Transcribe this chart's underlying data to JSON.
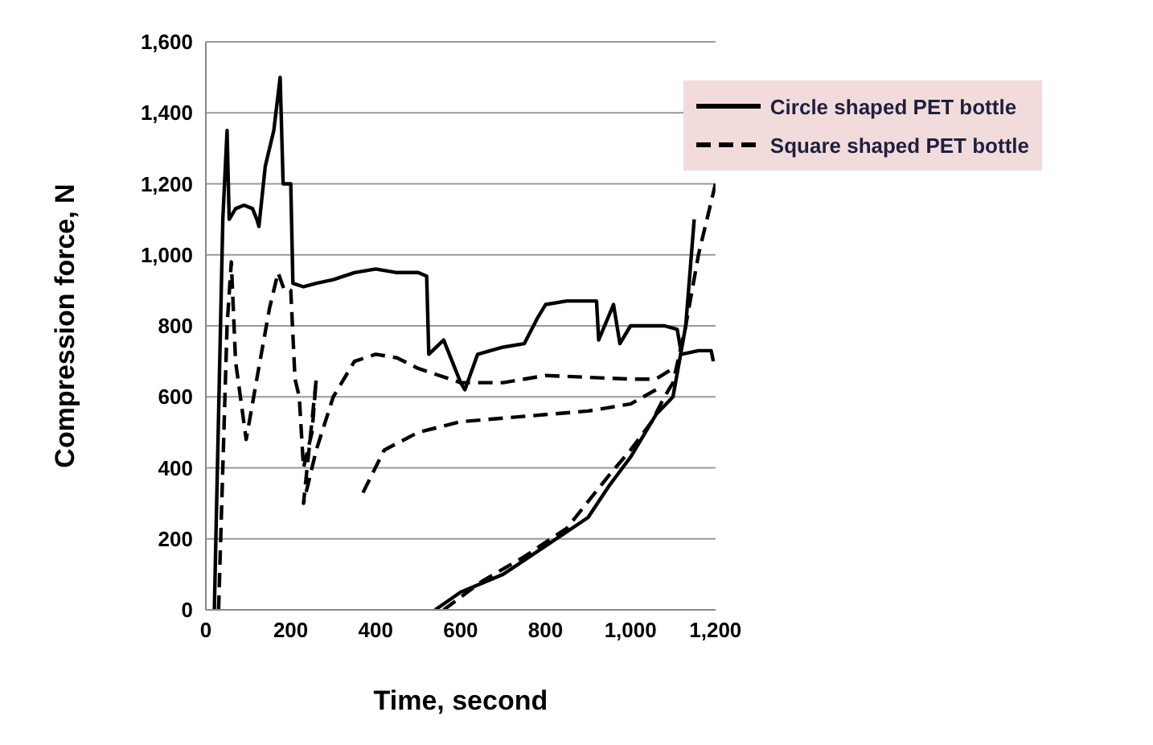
{
  "chart_data": {
    "type": "line",
    "xlabel": "Time, second",
    "ylabel": "Compression force, N",
    "xlim": [
      0,
      1200
    ],
    "xticks": [
      0,
      {
        "value": 200,
        "label": "200"
      },
      {
        "value": 400,
        "label": "400"
      },
      {
        "value": 600,
        "label": "600"
      },
      {
        "value": 800,
        "label": "800"
      },
      {
        "value": 1000,
        "label": "1,000"
      },
      {
        "value": 1200,
        "label": "1,200"
      }
    ],
    "ylim": [
      0,
      1600
    ],
    "yticks": [
      0,
      200,
      400,
      600,
      800,
      {
        "value": 1000,
        "label": "1,000"
      },
      {
        "value": 1200,
        "label": "1,200"
      },
      {
        "value": 1400,
        "label": "1,400"
      },
      {
        "value": 1600,
        "label": "1,600"
      }
    ],
    "grid": "y",
    "legend": "top right",
    "marker": "none",
    "series": [
      {
        "name": "Circle shaped PET bottle",
        "color": "#000000",
        "line_style": "solid",
        "x": [
          20,
          40,
          50,
          55,
          70,
          90,
          110,
          120,
          125,
          140,
          160,
          175,
          182,
          190,
          200,
          205,
          230,
          260,
          300,
          350,
          400,
          450,
          500,
          520,
          525,
          560,
          580,
          600,
          610,
          640,
          700,
          750,
          780,
          800,
          850,
          920,
          925,
          960,
          975,
          1000,
          1080,
          1110,
          1120,
          1160,
          1190,
          1195,
          null,
          540,
          600,
          700,
          800,
          900,
          950,
          1000,
          1060,
          1100,
          1130,
          1150
        ],
        "values": [
          0,
          1100,
          1350,
          1100,
          1130,
          1140,
          1130,
          1100,
          1080,
          1250,
          1350,
          1500,
          1200,
          1200,
          1200,
          920,
          910,
          920,
          930,
          950,
          960,
          950,
          950,
          940,
          720,
          760,
          700,
          640,
          620,
          720,
          740,
          750,
          820,
          860,
          870,
          870,
          760,
          860,
          750,
          800,
          800,
          790,
          720,
          730,
          730,
          700,
          null,
          0,
          50,
          100,
          180,
          260,
          350,
          430,
          550,
          600,
          800,
          1100
        ]
      },
      {
        "name": "Square shaped PET bottle",
        "color": "#000000",
        "line_style": "dashed",
        "x": [
          30,
          50,
          60,
          70,
          95,
          120,
          150,
          170,
          185,
          200,
          210,
          220,
          230,
          250,
          260,
          230,
          260,
          300,
          350,
          400,
          450,
          500,
          600,
          700,
          800,
          900,
          1000,
          1060,
          1100,
          null,
          370,
          420,
          500,
          600,
          700,
          800,
          900,
          1000,
          1060,
          null,
          560,
          650,
          750,
          850,
          950,
          1000,
          1050,
          1080,
          1100,
          1130,
          1160,
          1200
        ],
        "values": [
          0,
          800,
          980,
          700,
          480,
          650,
          850,
          950,
          900,
          900,
          650,
          600,
          400,
          500,
          650,
          300,
          450,
          600,
          700,
          720,
          710,
          680,
          640,
          640,
          660,
          655,
          650,
          650,
          680,
          null,
          330,
          450,
          500,
          530,
          540,
          550,
          560,
          580,
          620,
          null,
          0,
          80,
          150,
          230,
          380,
          450,
          530,
          600,
          640,
          800,
          1000,
          1200
        ]
      }
    ]
  }
}
